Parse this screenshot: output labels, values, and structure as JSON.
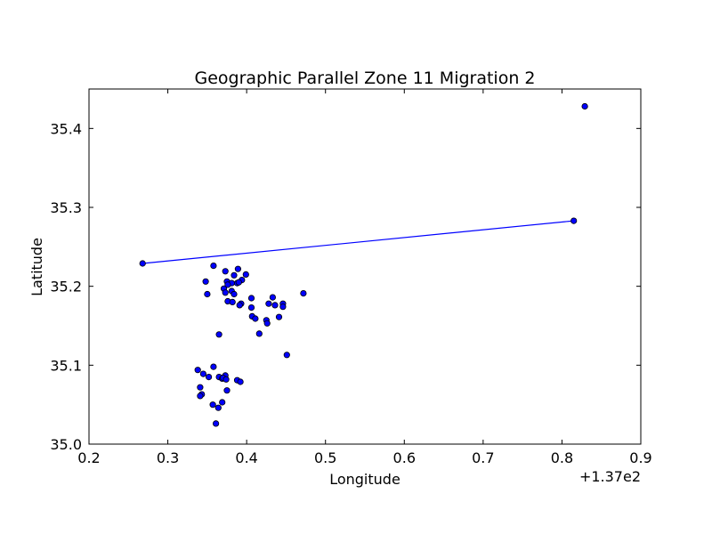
{
  "chart_data": {
    "type": "scatter",
    "title": "Geographic Parallel Zone 11 Migration 2",
    "xlabel": "Longitude",
    "ylabel": "Latitude",
    "x_offset_label": "+1.37e2",
    "xlim": [
      137.2,
      137.9
    ],
    "ylim": [
      35.0,
      35.45
    ],
    "x_ticks": [
      137.2,
      137.3,
      137.4,
      137.5,
      137.6,
      137.7,
      137.8,
      137.9
    ],
    "x_tick_labels": [
      "0.2",
      "0.3",
      "0.4",
      "0.5",
      "0.6",
      "0.7",
      "0.8",
      "0.9"
    ],
    "y_ticks": [
      35.0,
      35.1,
      35.2,
      35.3,
      35.4
    ],
    "y_tick_labels": [
      "35.0",
      "35.1",
      "35.2",
      "35.3",
      "35.4"
    ],
    "grid": false,
    "colors": {
      "marker_fill": "#0000ff",
      "marker_edge": "#000000",
      "line": "#0000ff",
      "axes": "#000000"
    },
    "series": [
      {
        "kind": "line",
        "x": [
          137.268,
          137.815
        ],
        "y": [
          35.229,
          35.283
        ]
      },
      {
        "kind": "scatter",
        "x": [
          137.268,
          137.815,
          137.829,
          137.358,
          137.373,
          137.389,
          137.399,
          137.384,
          137.394,
          137.375,
          137.381,
          137.348,
          137.376,
          137.388,
          137.39,
          137.371,
          137.381,
          137.35,
          137.373,
          137.384,
          137.406,
          137.433,
          137.472,
          137.376,
          137.382,
          137.393,
          137.391,
          137.406,
          137.428,
          137.446,
          137.436,
          137.446,
          137.407,
          137.411,
          137.441,
          137.425,
          137.426,
          137.416,
          137.365,
          137.451,
          137.338,
          137.358,
          137.345,
          137.352,
          137.365,
          137.369,
          137.373,
          137.388,
          137.392,
          137.341,
          137.375,
          137.343,
          137.341,
          137.357,
          137.369,
          137.364,
          137.361,
          137.37,
          137.374
        ],
        "y": [
          35.229,
          35.283,
          35.428,
          35.226,
          35.219,
          35.222,
          35.215,
          35.214,
          35.208,
          35.206,
          35.204,
          35.206,
          35.202,
          35.204,
          35.205,
          35.197,
          35.194,
          35.19,
          35.192,
          35.19,
          35.185,
          35.186,
          35.191,
          35.181,
          35.18,
          35.178,
          35.176,
          35.173,
          35.178,
          35.178,
          35.176,
          35.174,
          35.162,
          35.159,
          35.161,
          35.157,
          35.153,
          35.14,
          35.139,
          35.113,
          35.094,
          35.098,
          35.089,
          35.085,
          35.085,
          35.083,
          35.087,
          35.081,
          35.079,
          35.072,
          35.068,
          35.063,
          35.061,
          35.05,
          35.053,
          35.046,
          35.026,
          35.084,
          35.082
        ]
      }
    ]
  }
}
